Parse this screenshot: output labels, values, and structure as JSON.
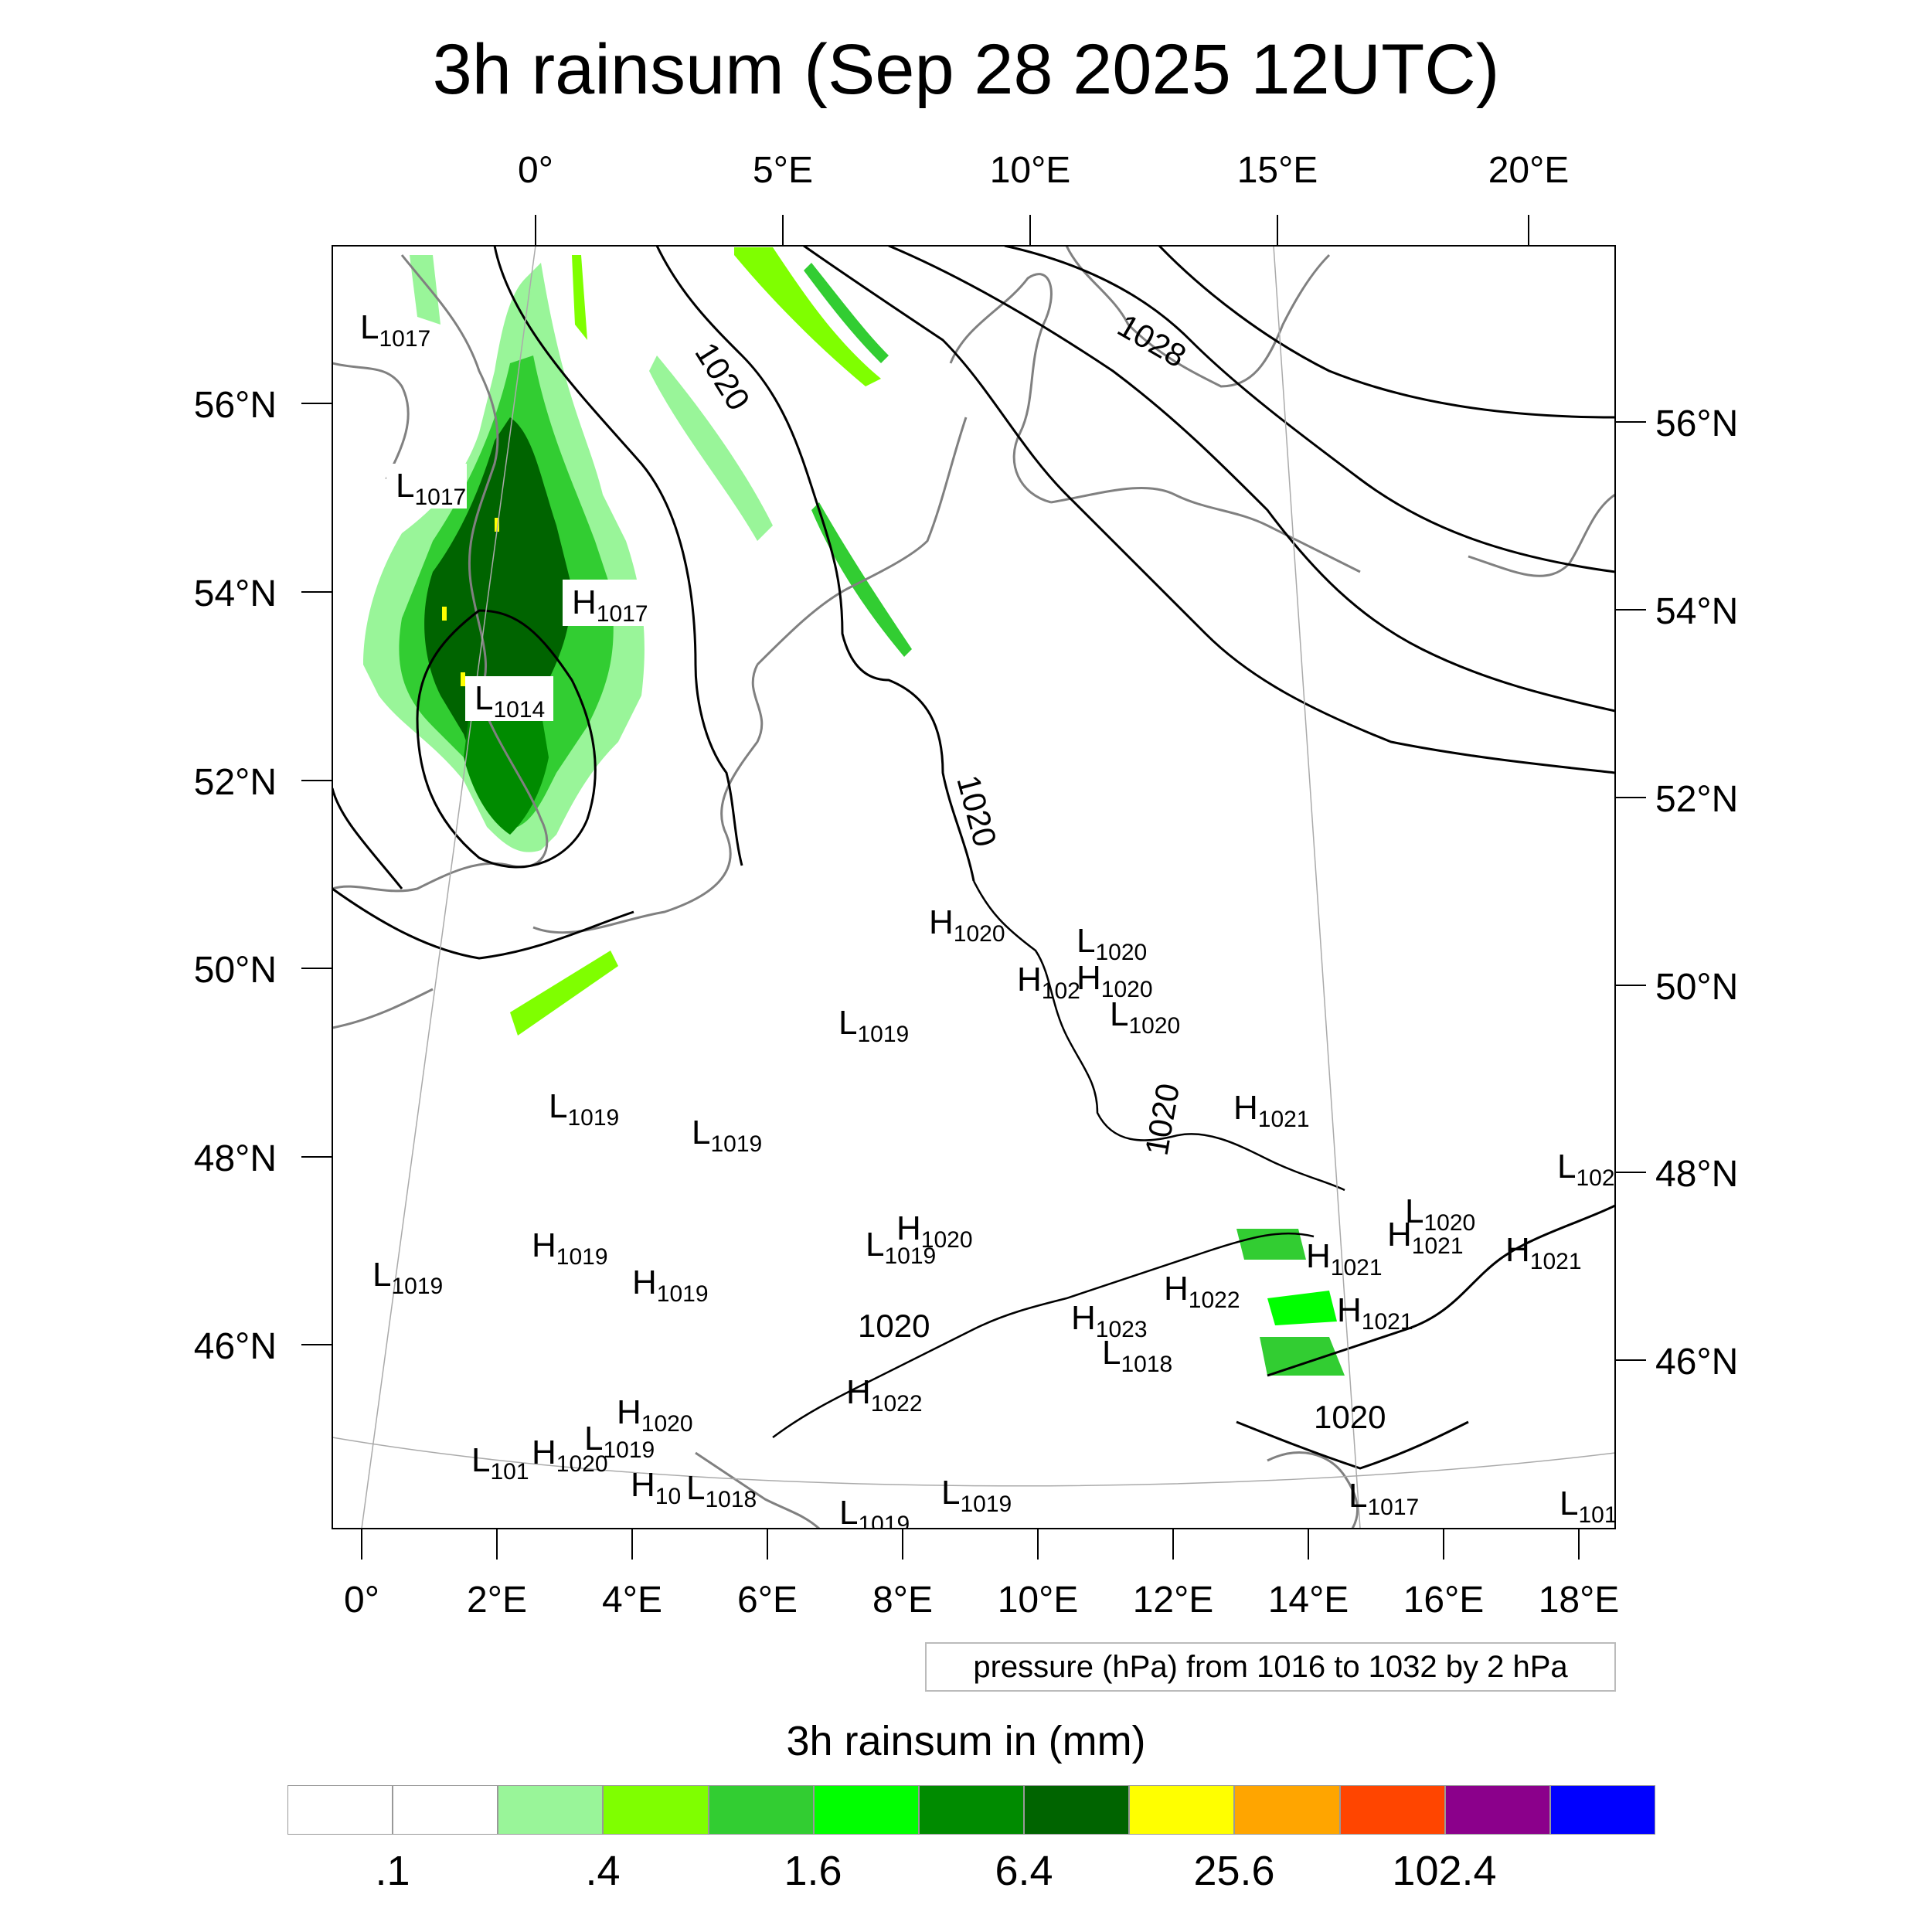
{
  "title": "3h rainsum (Sep 28 2025 12UTC)",
  "top_lon_labels": [
    "0°",
    "5°E",
    "10°E",
    "15°E",
    "20°E"
  ],
  "bottom_lon_labels": [
    "0°",
    "2°E",
    "4°E",
    "6°E",
    "8°E",
    "10°E",
    "12°E",
    "14°E",
    "16°E",
    "18°E"
  ],
  "left_lat_labels": [
    "56°N",
    "54°N",
    "52°N",
    "50°N",
    "48°N",
    "46°N"
  ],
  "right_lat_labels": [
    "56°N",
    "54°N",
    "52°N",
    "50°N",
    "48°N",
    "46°N"
  ],
  "isobar_labels": [
    "1020",
    "1028",
    "1020",
    "1020",
    "1020",
    "1020"
  ],
  "pressure_centers": [
    {
      "letter": "L",
      "value": "1017"
    },
    {
      "letter": "L",
      "value": "1017"
    },
    {
      "letter": "H",
      "value": "1017"
    },
    {
      "letter": "L",
      "value": "1014"
    },
    {
      "letter": "H",
      "value": "1020"
    },
    {
      "letter": "L",
      "value": "1020"
    },
    {
      "letter": "H",
      "value": "102"
    },
    {
      "letter": "H",
      "value": "1020"
    },
    {
      "letter": "L",
      "value": "1020"
    },
    {
      "letter": "L",
      "value": "1019"
    },
    {
      "letter": "L",
      "value": "1019"
    },
    {
      "letter": "L",
      "value": "1019"
    },
    {
      "letter": "H",
      "value": "1021"
    },
    {
      "letter": "L",
      "value": "102"
    },
    {
      "letter": "H",
      "value": "1020"
    },
    {
      "letter": "L",
      "value": "1019"
    },
    {
      "letter": "L",
      "value": "1020"
    },
    {
      "letter": "H",
      "value": "1021"
    },
    {
      "letter": "H",
      "value": "1021"
    },
    {
      "letter": "H",
      "value": "1019"
    },
    {
      "letter": "L",
      "value": "1019"
    },
    {
      "letter": "H",
      "value": "1019"
    },
    {
      "letter": "H",
      "value": "1021"
    },
    {
      "letter": "H",
      "value": "1022"
    },
    {
      "letter": "H",
      "value": "1021"
    },
    {
      "letter": "H",
      "value": "1023"
    },
    {
      "letter": "L",
      "value": "1018"
    },
    {
      "letter": "H",
      "value": "1022"
    },
    {
      "letter": "H",
      "value": "1020"
    },
    {
      "letter": "L",
      "value": "101"
    },
    {
      "letter": "H",
      "value": "1020"
    },
    {
      "letter": "L",
      "value": "1019"
    },
    {
      "letter": "H",
      "value": "10"
    },
    {
      "letter": "L",
      "value": "1018"
    },
    {
      "letter": "L",
      "value": "1019"
    },
    {
      "letter": "L",
      "value": "1019"
    },
    {
      "letter": "L",
      "value": "1017"
    },
    {
      "letter": "L",
      "value": "101"
    }
  ],
  "legend": {
    "text": "pressure (hPa) from 1016 to 1032 by 2 hPa"
  },
  "colorbar": {
    "title": "3h rainsum in (mm)",
    "colors": [
      "#ffffff",
      "#ffffff",
      "#99f599",
      "#7fff00",
      "#32cd32",
      "#00ff00",
      "#008b00",
      "#006400",
      "#ffff00",
      "#ffa500",
      "#ff4500",
      "#8b008b",
      "#0000ff"
    ],
    "labels": [
      ".1",
      ".4",
      "1.6",
      "6.4",
      "25.6",
      "102.4"
    ]
  }
}
